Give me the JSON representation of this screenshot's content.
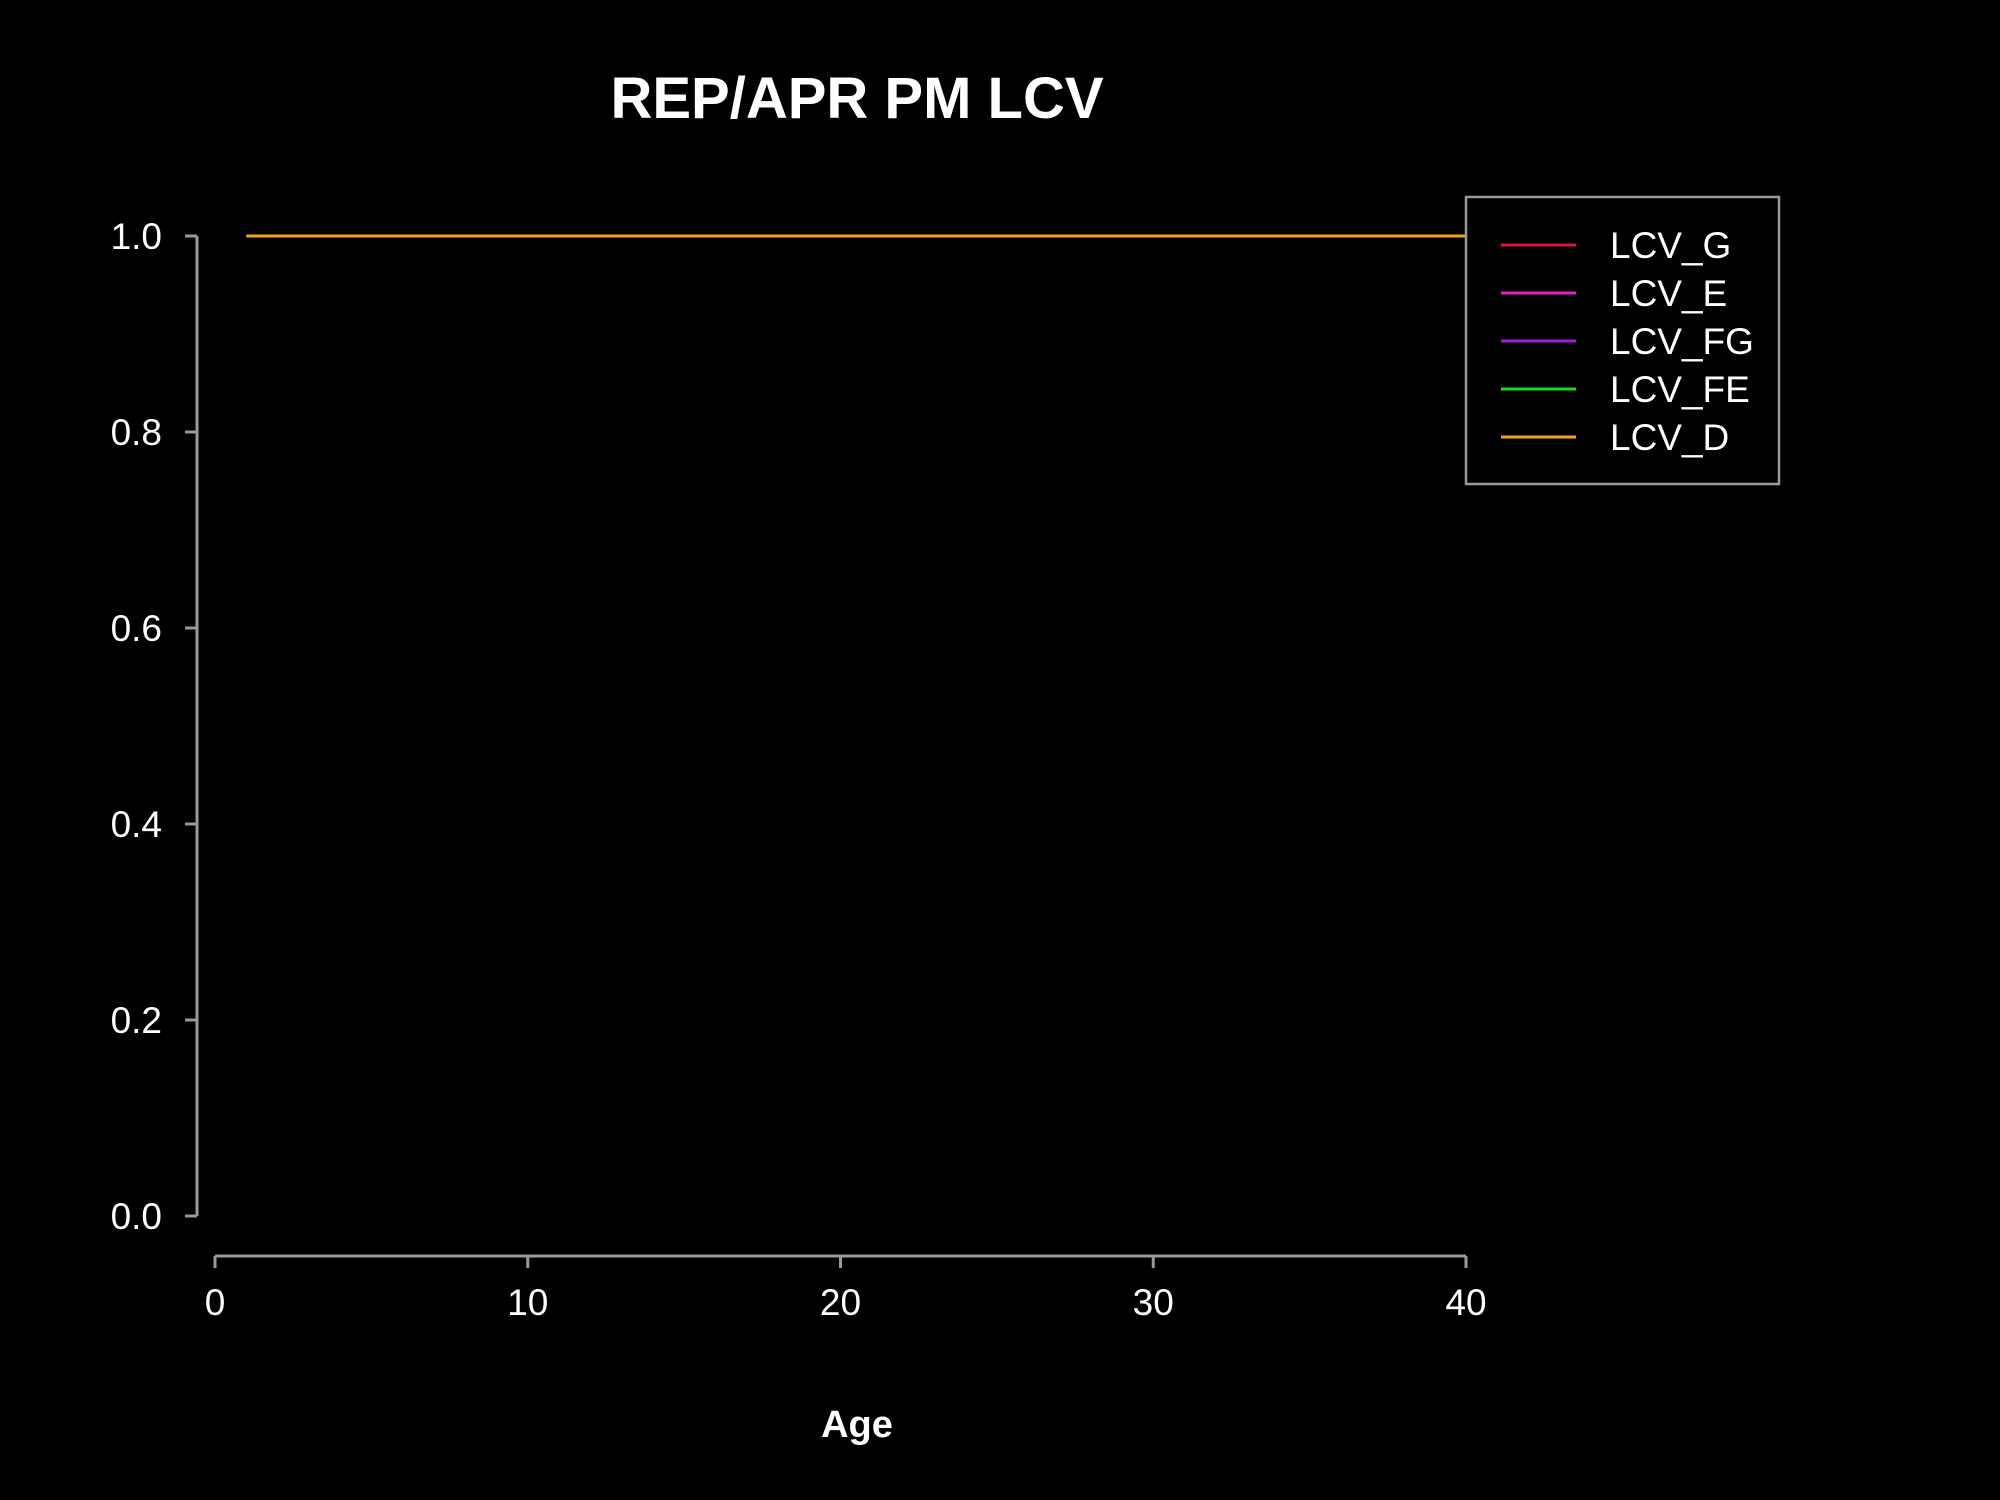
{
  "chart_data": {
    "type": "line",
    "title": "REP/APR PM LCV",
    "xlabel": "Age",
    "ylabel": "",
    "xlim": [
      0,
      40
    ],
    "ylim": [
      0,
      1
    ],
    "xticks": [
      0,
      10,
      20,
      30,
      40
    ],
    "yticks": [
      "0.0",
      "0.2",
      "0.4",
      "0.6",
      "0.8",
      "1.0"
    ],
    "grid": false,
    "legend_position": "top-right",
    "background": "#000000",
    "series": [
      {
        "name": "LCV_G",
        "color": "#dc143c",
        "x": [],
        "y": []
      },
      {
        "name": "LCV_E",
        "color": "#e020c0",
        "x": [],
        "y": []
      },
      {
        "name": "LCV_FG",
        "color": "#9b1ee0",
        "x": [],
        "y": []
      },
      {
        "name": "LCV_FE",
        "color": "#1ed81e",
        "x": [],
        "y": []
      },
      {
        "name": "LCV_D",
        "color": "#f0a020",
        "x": [
          1,
          40
        ],
        "y": [
          1.0,
          1.0
        ]
      }
    ]
  }
}
